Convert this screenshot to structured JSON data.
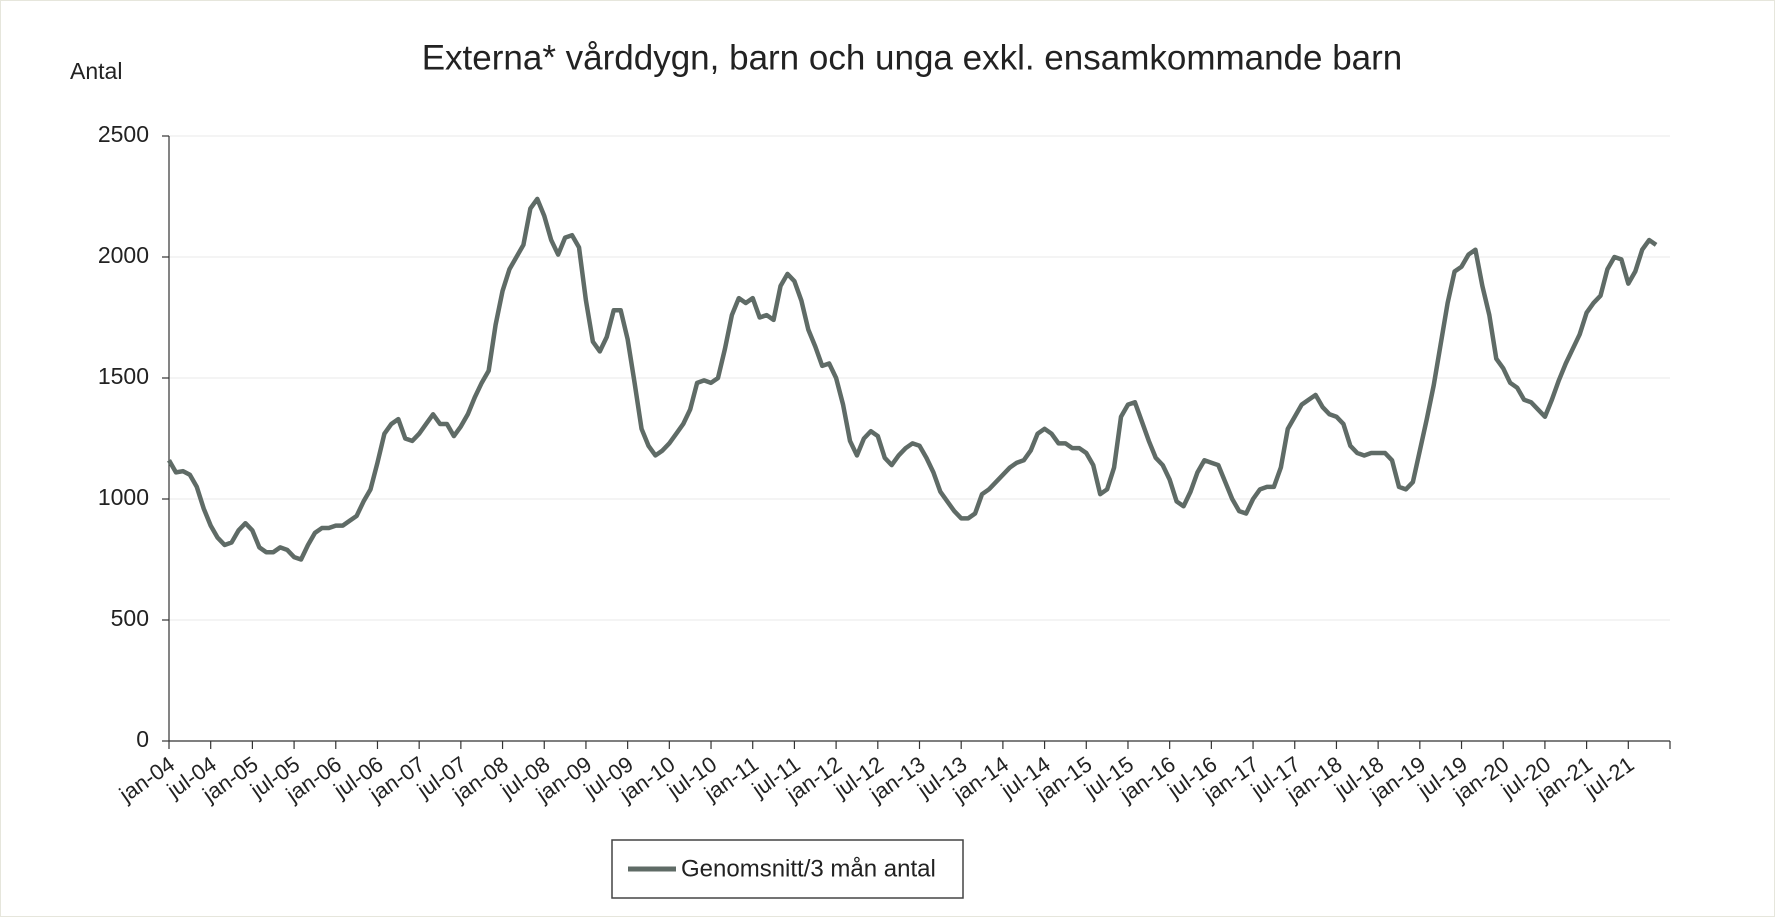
{
  "chart_data": {
    "type": "line",
    "title": "Externa* vårddygn, barn och unga exkl. ensamkommande barn",
    "ylabel": "Antal",
    "categories": [
      "jan-04",
      null,
      null,
      null,
      null,
      null,
      "jul-04",
      null,
      null,
      null,
      null,
      null,
      "jan-05",
      null,
      null,
      null,
      null,
      null,
      "jul-05",
      null,
      null,
      null,
      null,
      null,
      "jan-06",
      null,
      null,
      null,
      null,
      null,
      "jul-06",
      null,
      null,
      null,
      null,
      null,
      "jan-07",
      null,
      null,
      null,
      null,
      null,
      "jul-07",
      null,
      null,
      null,
      null,
      null,
      "jan-08",
      null,
      null,
      null,
      null,
      null,
      "jul-08",
      null,
      null,
      null,
      null,
      null,
      "jan-09",
      null,
      null,
      null,
      null,
      null,
      "jul-09",
      null,
      null,
      null,
      null,
      null,
      "jan-10",
      null,
      null,
      null,
      null,
      null,
      "jul-10",
      null,
      null,
      null,
      null,
      null,
      "jan-11",
      null,
      null,
      null,
      null,
      null,
      "jul-11",
      null,
      null,
      null,
      null,
      null,
      "jan-12",
      null,
      null,
      null,
      null,
      null,
      "jul-12",
      null,
      null,
      null,
      null,
      null,
      "jan-13",
      null,
      null,
      null,
      null,
      null,
      "jul-13",
      null,
      null,
      null,
      null,
      null,
      "jan-14",
      null,
      null,
      null,
      null,
      null,
      "jul-14",
      null,
      null,
      null,
      null,
      null,
      "jan-15",
      null,
      null,
      null,
      null,
      null,
      "jul-15",
      null,
      null,
      null,
      null,
      null,
      "jan-16",
      null,
      null,
      null,
      null,
      null,
      "jul-16",
      null,
      null,
      null,
      null,
      null,
      "jan-17",
      null,
      null,
      null,
      null,
      null,
      "jul-17",
      null,
      null,
      null,
      null,
      null,
      "jan-18",
      null,
      null,
      null,
      null,
      null,
      "jul-18",
      null,
      null,
      null,
      null,
      null,
      "jan-19",
      null,
      null,
      null,
      null,
      null,
      "jul-19",
      null,
      null,
      null,
      null,
      null,
      "jan-20",
      null,
      null,
      null,
      null,
      null,
      "jul-20",
      null,
      null,
      null,
      null,
      null,
      "jan-21",
      null,
      null,
      null,
      null,
      null,
      "jul-21",
      null,
      null,
      null,
      null
    ],
    "series": [
      {
        "name": "Genomsnitt/3 mån antal",
        "color": "#5f6b66",
        "values": [
          1160,
          1110,
          1115,
          1100,
          1050,
          960,
          890,
          840,
          810,
          820,
          870,
          900,
          870,
          800,
          780,
          780,
          800,
          790,
          760,
          750,
          810,
          860,
          880,
          880,
          890,
          890,
          910,
          930,
          990,
          1040,
          1150,
          1270,
          1310,
          1330,
          1250,
          1240,
          1270,
          1310,
          1350,
          1310,
          1310,
          1260,
          1300,
          1350,
          1420,
          1480,
          1530,
          1720,
          1860,
          1950,
          2000,
          2050,
          2200,
          2240,
          2170,
          2070,
          2010,
          2080,
          2090,
          2040,
          1820,
          1650,
          1610,
          1670,
          1780,
          1780,
          1660,
          1480,
          1290,
          1220,
          1180,
          1200,
          1230,
          1270,
          1310,
          1370,
          1480,
          1490,
          1480,
          1500,
          1620,
          1760,
          1830,
          1810,
          1830,
          1750,
          1760,
          1740,
          1880,
          1930,
          1900,
          1820,
          1700,
          1630,
          1550,
          1560,
          1500,
          1390,
          1240,
          1180,
          1250,
          1280,
          1260,
          1170,
          1140,
          1180,
          1210,
          1230,
          1220,
          1170,
          1110,
          1030,
          990,
          950,
          920,
          920,
          940,
          1020,
          1040,
          1070,
          1100,
          1130,
          1150,
          1160,
          1200,
          1270,
          1290,
          1270,
          1230,
          1230,
          1210,
          1210,
          1190,
          1140,
          1020,
          1040,
          1130,
          1340,
          1390,
          1400,
          1320,
          1240,
          1170,
          1140,
          1080,
          990,
          970,
          1030,
          1110,
          1160,
          1150,
          1140,
          1070,
          1000,
          950,
          940,
          1000,
          1040,
          1050,
          1050,
          1130,
          1290,
          1340,
          1390,
          1410,
          1430,
          1380,
          1350,
          1340,
          1310,
          1220,
          1190,
          1180,
          1190,
          1190,
          1190,
          1160,
          1050,
          1040,
          1070,
          1200,
          1330,
          1470,
          1640,
          1810,
          1940,
          1960,
          2010,
          2030,
          1880,
          1760,
          1580,
          1540,
          1480,
          1460,
          1410,
          1400,
          1370,
          1340,
          1410,
          1490,
          1560,
          1620,
          1680,
          1770,
          1810,
          1840,
          1950,
          2000,
          1990,
          1890,
          1940,
          2030,
          2070,
          2050
        ]
      }
    ],
    "ylim": [
      0,
      2500
    ],
    "yticks": [
      0,
      500,
      1000,
      1500,
      2000,
      2500
    ],
    "grid": true,
    "legend": "bottom"
  }
}
